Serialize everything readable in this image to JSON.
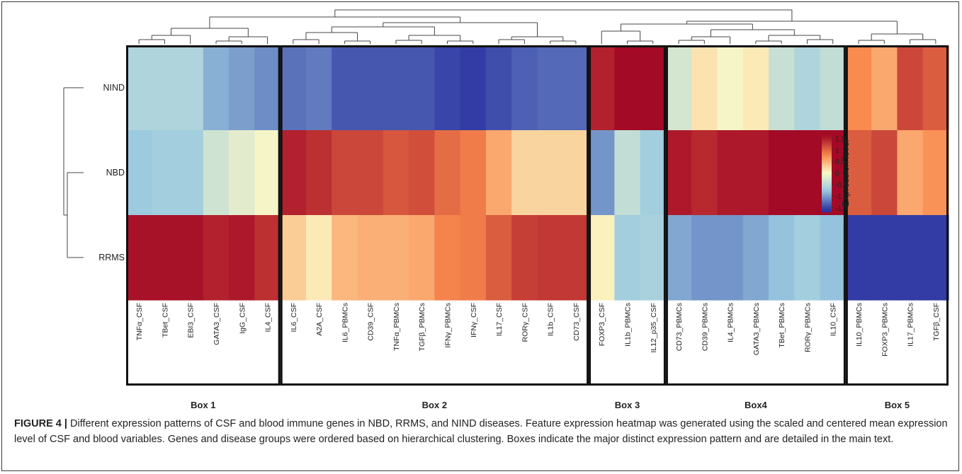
{
  "chart_data": {
    "type": "heatmap",
    "rows": [
      "NIND",
      "NBD",
      "RRMS"
    ],
    "columns": [
      "TNFα_CSF",
      "TBet_CSF",
      "EBI3_CSF",
      "GATA3_CSF",
      "IgG_CSF",
      "IL4_CSF",
      "IL6_CSF",
      "A2A_CSF",
      "IL6_PBMCs",
      "CD39_CSF",
      "TNFα_PBMCs",
      "TGFβ_PBMCs",
      "IFNγ_PBMCs",
      "IFNγ_CSF",
      "IL17_CSF",
      "RORγ_CSF",
      "IL1b_CSF",
      "CD73_CSF",
      "FOXP3_CSF",
      "IL1b_PBMCs",
      "IL12_p35_CSF",
      "CD73_PBMCs",
      "CD39_PBMCs",
      "IL4_PBMCs",
      "GATA3_PBMCs",
      "TBet_PBMCs",
      "RORγ_PBMCs",
      "IL10_CSF",
      "IL10_PBMCs",
      "FOXP3_PBMCs",
      "IL17_PBMCs",
      "TGFβ_CSF"
    ],
    "values": [
      [
        -0.6,
        -0.6,
        -0.6,
        -0.9,
        -1.0,
        -1.1,
        -1.25,
        -1.2,
        -1.4,
        -1.4,
        -1.4,
        -1.4,
        -1.5,
        -1.55,
        -1.45,
        -1.35,
        -1.3,
        -1.3,
        1.45,
        1.6,
        1.6,
        -0.3,
        0.15,
        -0.05,
        0.1,
        -0.4,
        -0.6,
        -0.45,
        0.75,
        0.55,
        1.2,
        1.05
      ],
      [
        -0.75,
        -0.7,
        -0.7,
        -0.35,
        -0.2,
        -0.05,
        1.45,
        1.35,
        1.2,
        1.2,
        1.1,
        1.15,
        0.95,
        0.85,
        0.55,
        0.25,
        0.25,
        0.25,
        -1.05,
        -0.45,
        -0.7,
        1.5,
        1.4,
        1.5,
        1.5,
        1.6,
        1.6,
        1.6,
        1.05,
        1.2,
        0.55,
        0.7
      ],
      [
        1.55,
        1.55,
        1.55,
        1.45,
        1.5,
        1.35,
        0.3,
        0.1,
        0.45,
        0.5,
        0.5,
        0.55,
        0.8,
        0.85,
        1.05,
        1.25,
        1.3,
        1.3,
        0.05,
        -0.7,
        -0.65,
        -0.95,
        -1.05,
        -1.05,
        -0.95,
        -0.8,
        -0.7,
        -0.8,
        -1.55,
        -1.55,
        -1.55,
        -1.55
      ]
    ],
    "boxes": [
      {
        "label": "Box 1",
        "start": 0,
        "end": 5
      },
      {
        "label": "Box 2",
        "start": 6,
        "end": 17
      },
      {
        "label": "Box 3",
        "start": 18,
        "end": 20
      },
      {
        "label": "Box4",
        "start": 21,
        "end": 27
      },
      {
        "label": "Box 5",
        "start": 28,
        "end": 31
      }
    ],
    "legend": {
      "title": "Expression level",
      "ticks": [
        "1.5",
        "1",
        "0.5",
        "0",
        "-0.5",
        "-1",
        "-1.5"
      ],
      "range": [
        -1.7,
        1.7
      ],
      "placement": "right"
    },
    "colors": {
      "low": "#2c33a0",
      "mid_low": "#9ccbe0",
      "mid": "#fbf8c6",
      "mid_high": "#f98b4e",
      "high": "#a30a26"
    }
  },
  "caption": {
    "label": "FIGURE 4 |",
    "text": "Different expression patterns of CSF and blood immune genes in NBD, RRMS, and NIND diseases. Feature expression heatmap was generated using the scaled and centered mean expression level of CSF and blood variables. Genes and disease groups were ordered based on hierarchical clustering. Boxes indicate the major distinct expression pattern and are detailed in the main text."
  }
}
